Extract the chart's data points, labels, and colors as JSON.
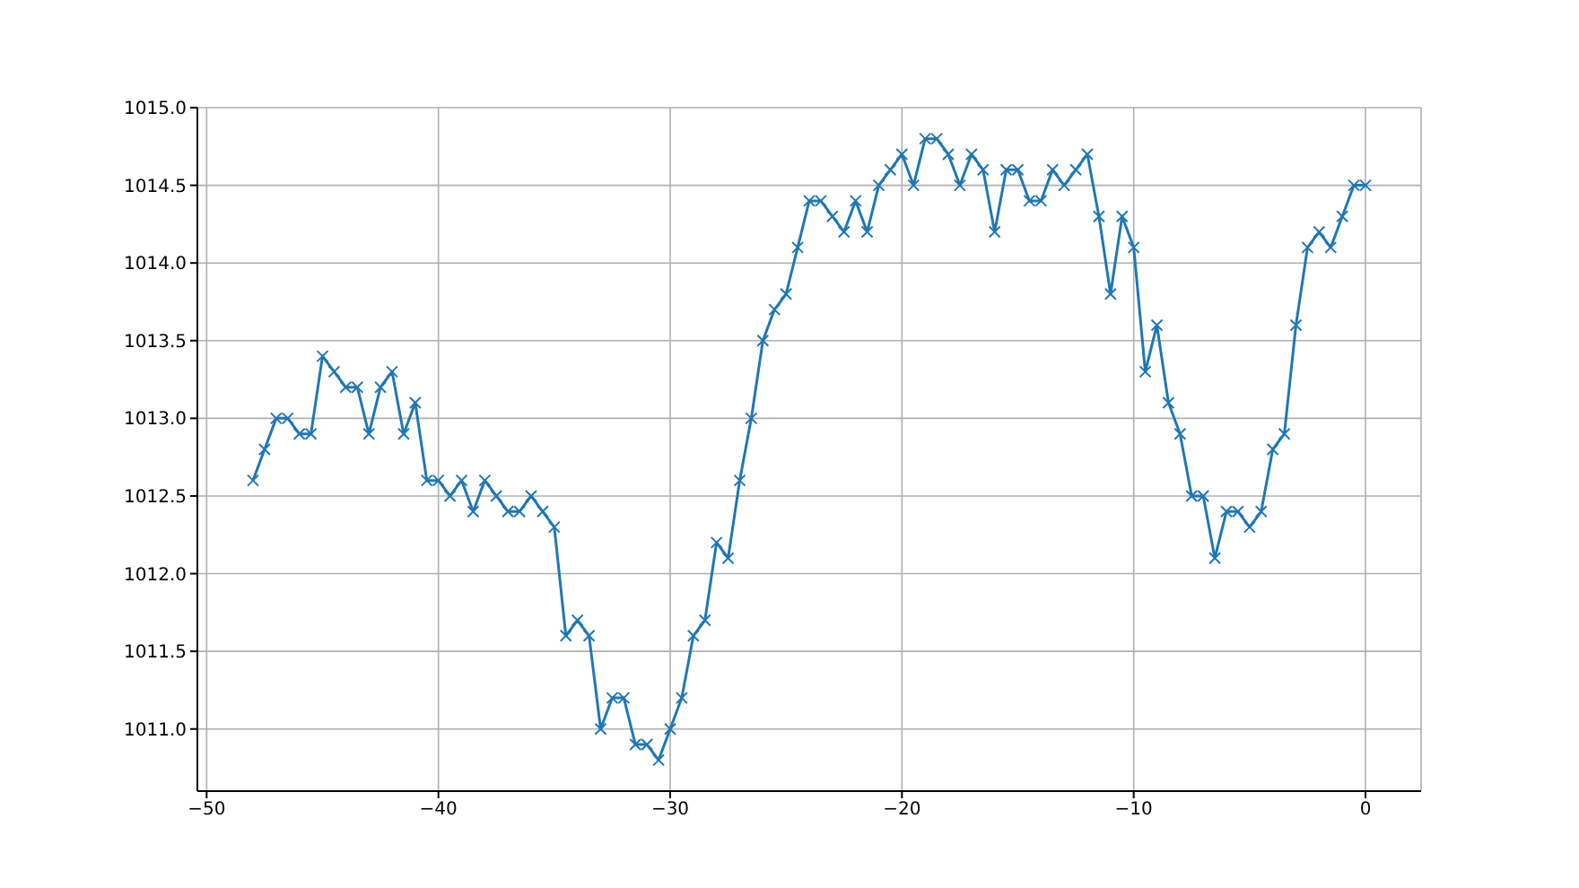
{
  "chart_data": {
    "type": "line",
    "x": [
      -48,
      -47.5,
      -47,
      -46.5,
      -46,
      -45.5,
      -45,
      -44.5,
      -44,
      -43.5,
      -43,
      -42.5,
      -42,
      -41.5,
      -41,
      -40.5,
      -40,
      -39.5,
      -39,
      -38.5,
      -38,
      -37.5,
      -37,
      -36.5,
      -36,
      -35.5,
      -35,
      -34.5,
      -34,
      -33.5,
      -33,
      -32.5,
      -32,
      -31.5,
      -31,
      -30.5,
      -30,
      -29.5,
      -29,
      -28.5,
      -28,
      -27.5,
      -27,
      -26.5,
      -26,
      -25.5,
      -25,
      -24.5,
      -24,
      -23.5,
      -23,
      -22.5,
      -22,
      -21.5,
      -21,
      -20.5,
      -20,
      -19.5,
      -19,
      -18.5,
      -18,
      -17.5,
      -17,
      -16.5,
      -16,
      -15.5,
      -15,
      -14.5,
      -14,
      -13.5,
      -13,
      -12.5,
      -12,
      -11.5,
      -11,
      -10.5,
      -10,
      -9.5,
      -9,
      -8.5,
      -8,
      -7.5,
      -7,
      -6.5,
      -6,
      -5.5,
      -5,
      -4.5,
      -4,
      -3.5,
      -3,
      -2.5,
      -2,
      -1.5,
      -1,
      -0.5,
      0
    ],
    "series": [
      {
        "color": "#1f77b4",
        "values": [
          1012.6,
          1012.8,
          1013.0,
          1013.0,
          1012.9,
          1012.9,
          1013.4,
          1013.3,
          1013.2,
          1013.2,
          1012.9,
          1013.2,
          1013.3,
          1012.9,
          1013.1,
          1012.6,
          1012.6,
          1012.5,
          1012.6,
          1012.4,
          1012.6,
          1012.5,
          1012.4,
          1012.4,
          1012.5,
          1012.4,
          1012.3,
          1011.6,
          1011.7,
          1011.6,
          1011.0,
          1011.2,
          1011.2,
          1010.9,
          1010.9,
          1010.8,
          1011.0,
          1011.2,
          1011.6,
          1011.7,
          1012.2,
          1012.1,
          1012.6,
          1013.0,
          1013.5,
          1013.7,
          1013.8,
          1014.1,
          1014.4,
          1014.4,
          1014.3,
          1014.2,
          1014.4,
          1014.2,
          1014.5,
          1014.6,
          1014.7,
          1014.5,
          1014.8,
          1014.8,
          1014.7,
          1014.5,
          1014.7,
          1014.6,
          1014.2,
          1014.6,
          1014.6,
          1014.4,
          1014.4,
          1014.6,
          1014.5,
          1014.6,
          1014.7,
          1014.3,
          1013.8,
          1014.3,
          1014.1,
          1013.3,
          1013.6,
          1013.1,
          1012.9,
          1012.5,
          1012.5,
          1012.1,
          1012.4,
          1012.4,
          1012.3,
          1012.4,
          1012.8,
          1012.9,
          1013.6,
          1014.1,
          1014.2,
          1014.1,
          1014.3,
          1014.5,
          1014.5
        ]
      }
    ],
    "xlim": [
      -50.4,
      2.4
    ],
    "xticks": [
      {
        "value": -50,
        "label": "−50"
      },
      {
        "value": -40,
        "label": "−40"
      },
      {
        "value": -30,
        "label": "−30"
      },
      {
        "value": -20,
        "label": "−20"
      },
      {
        "value": -10,
        "label": "−10"
      },
      0
    ],
    "ylim": [
      1010.6,
      1015.0
    ],
    "yticks": [
      {
        "value": 1011,
        "label": "1011.0"
      },
      1011.5,
      {
        "value": 1012,
        "label": "1012.0"
      },
      1012.5,
      {
        "value": 1013,
        "label": "1013.0"
      },
      1013.5,
      {
        "value": 1014,
        "label": "1014.0"
      },
      1014.5,
      {
        "value": 1015,
        "label": "1015.0"
      }
    ],
    "grid": true,
    "marker": "cross",
    "line_style": "solid"
  }
}
